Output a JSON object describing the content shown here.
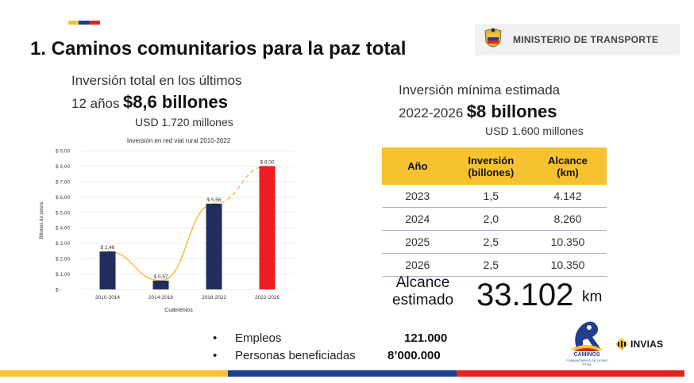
{
  "header": {
    "title": "1. Caminos comunitarios para la paz total",
    "ministry": "MINISTERIO DE TRANSPORTE"
  },
  "left_summary": {
    "line1": "Inversión total en los últimos",
    "prefix": "12 años",
    "amount": "$8,6 billones",
    "usd": "USD 1.720 millones"
  },
  "right_summary": {
    "line1": "Inversión mínima estimada",
    "prefix": "2022-2026",
    "amount": "$8 billones",
    "usd": "USD 1.600 millones"
  },
  "chart_data": {
    "type": "bar",
    "title": "Inversión en red vial rural 2010-2022",
    "xlabel": "Cuatrienios",
    "ylabel": "Billones de pesos",
    "ylim": [
      0,
      9
    ],
    "yticks": [
      "$ -",
      "$ 1,00",
      "$ 2,00",
      "$ 3,00",
      "$ 4,00",
      "$ 5,00",
      "$ 6,00",
      "$ 7,00",
      "$ 8,00",
      "$ 9,00"
    ],
    "categories": [
      "2010-2014",
      "2014-2018",
      "2018-2022",
      "2022-2026"
    ],
    "values": [
      2.46,
      0.57,
      5.56,
      8.0
    ],
    "value_labels": [
      "$ 2,46",
      "$ 0,57",
      "$ 5,56",
      "$ 8,00"
    ],
    "bar_colors": [
      "#1f2e5c",
      "#1f2e5c",
      "#1f2e5c",
      "#ee1c25"
    ],
    "trend_color": "#f0c040",
    "grid": true
  },
  "table": {
    "headers": [
      "Año",
      "Inversión\n(billones)",
      "Alcance\n(km)"
    ],
    "rows": [
      [
        "2023",
        "1,5",
        "4.142"
      ],
      [
        "2024",
        "2,0",
        "8.260"
      ],
      [
        "2025",
        "2,5",
        "10.350"
      ],
      [
        "2026",
        "2,5",
        "10.350"
      ]
    ]
  },
  "alcance": {
    "label_line1": "Alcance",
    "label_line2": "estimado",
    "value": "33.102",
    "unit": "km"
  },
  "bullets": [
    {
      "label": "Empleos",
      "value": "121.000"
    },
    {
      "label": "Personas beneficiadas",
      "value": "8’000.000"
    }
  ],
  "logos": {
    "caminos": "CAMINOS",
    "caminos_sub": "COMUNITARIOS DE LA PAZ TOTAL",
    "invias": "INVIAS"
  },
  "colors": {
    "flag_yellow": "#f6c230",
    "flag_blue": "#1f3f8f",
    "flag_red": "#e1261c",
    "table_header": "#f6c230"
  }
}
